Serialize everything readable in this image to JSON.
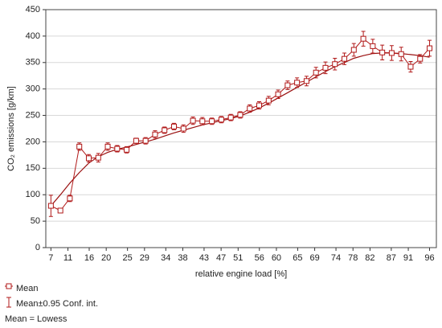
{
  "chart_data": {
    "type": "line",
    "x_label": "relative engine load [%]",
    "y_label": "CO₂ emissions [g/km]",
    "x": [
      7,
      9.23,
      11.45,
      13.68,
      15.9,
      18.13,
      20.35,
      22.58,
      24.8,
      27.03,
      29.25,
      31.48,
      33.7,
      35.93,
      38.15,
      40.38,
      42.6,
      44.83,
      47.05,
      49.28,
      51.5,
      53.73,
      55.95,
      58.18,
      60.4,
      62.63,
      64.85,
      67.08,
      69.3,
      71.53,
      73.75,
      75.98,
      78.2,
      80.43,
      82.65,
      84.88,
      87.1,
      89.33,
      91.55,
      93.78,
      96
    ],
    "series": [
      {
        "name": "Mean",
        "color": "#b01818",
        "values": [
          79,
          70,
          93,
          191,
          169,
          170,
          191,
          187,
          185,
          202,
          202,
          214,
          222,
          229,
          225,
          240,
          239,
          239,
          242,
          246,
          251,
          263,
          269,
          278,
          290,
          307,
          312,
          315,
          331,
          340,
          347,
          357,
          374,
          395,
          381,
          369,
          368,
          366,
          342,
          357,
          377
        ],
        "errors": [
          20,
          3,
          6,
          7,
          7,
          8,
          7,
          6,
          6,
          5,
          6,
          7,
          6,
          6,
          7,
          7,
          7,
          6,
          6,
          6,
          6,
          7,
          7,
          8,
          8,
          8,
          9,
          9,
          10,
          11,
          11,
          11,
          12,
          14,
          13,
          14,
          14,
          13,
          10,
          8,
          15
        ],
        "error_name": "Mean±0.95 Conf. int."
      }
    ],
    "fit": {
      "label": "Mean = Lowess",
      "color": "#9a1010",
      "values": [
        79,
        100,
        122,
        142,
        160,
        172,
        180,
        186,
        190,
        195,
        200,
        205,
        211,
        217,
        222,
        227,
        232,
        236,
        240,
        244,
        249,
        256,
        264,
        273,
        283,
        293,
        303,
        313,
        323,
        333,
        342,
        350,
        358,
        363,
        367,
        368,
        368,
        367,
        365,
        363,
        360
      ]
    },
    "xlim": [
      5.8,
      97.6
    ],
    "xticks": [
      7,
      11,
      16,
      20,
      25,
      29,
      34,
      38,
      43,
      47,
      51,
      56,
      60,
      65,
      69,
      74,
      78,
      82,
      87,
      91,
      96
    ],
    "ylim": [
      0,
      450
    ],
    "yticks": [
      0,
      50,
      100,
      150,
      200,
      250,
      300,
      350,
      400,
      450
    ],
    "grid": true
  }
}
